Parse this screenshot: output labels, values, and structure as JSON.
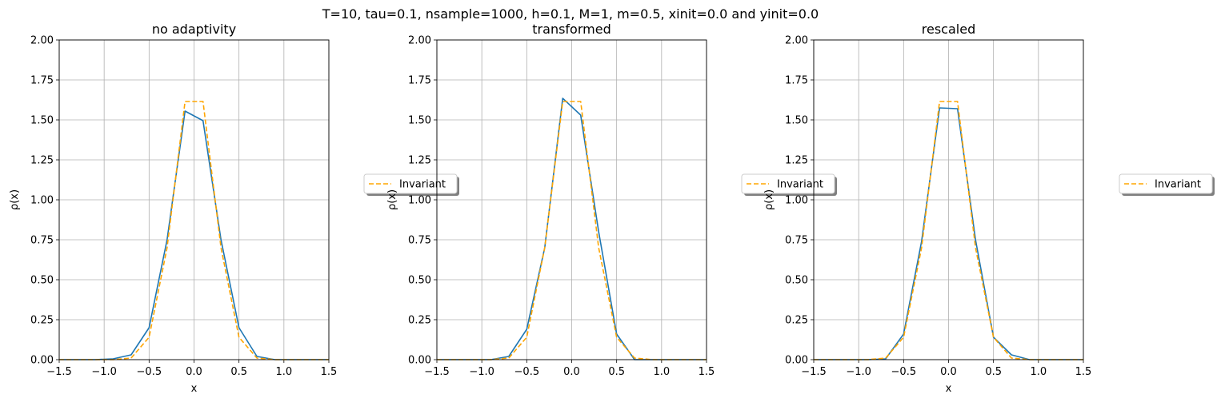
{
  "suptitle": "T=10, tau=0.1, nsample=1000, h=0.1, M=1, m=0.5, xinit=0.0 and yinit=0.0",
  "colors": {
    "series": "#1f77b4",
    "invariant": "#ffa500",
    "grid": "#b0b0b0"
  },
  "chart_data": [
    {
      "type": "line",
      "title": "no adaptivity",
      "xlabel": "x",
      "ylabel": "ρ(x)",
      "xlim": [
        -1.5,
        1.5
      ],
      "ylim": [
        0,
        2.0
      ],
      "xticks": [
        "−1.5",
        "−1.0",
        "−0.5",
        "0.0",
        "0.5",
        "1.0",
        "1.5"
      ],
      "yticks": [
        "0.00",
        "0.25",
        "0.50",
        "0.75",
        "1.00",
        "1.25",
        "1.50",
        "1.75",
        "2.00"
      ],
      "grid": true,
      "legend": {
        "entries": [
          "Invariant"
        ],
        "placement": "center-right outside"
      },
      "series": [
        {
          "x": [
            -1.5,
            -1.3,
            -1.1,
            -0.9,
            -0.7,
            -0.5,
            -0.3,
            -0.1,
            0.1,
            0.3,
            0.5,
            0.7,
            0.9,
            1.1,
            1.3,
            1.5
          ],
          "y": [
            0.0,
            0.0,
            0.0,
            0.005,
            0.03,
            0.2,
            0.75,
            1.555,
            1.495,
            0.75,
            0.2,
            0.02,
            0.0,
            0.0,
            0.0,
            0.0
          ]
        },
        {
          "name": "Invariant",
          "x": [
            -1.5,
            -1.3,
            -1.1,
            -0.9,
            -0.7,
            -0.5,
            -0.3,
            -0.1,
            0.1,
            0.3,
            0.5,
            0.7,
            0.9,
            1.1,
            1.3,
            1.5
          ],
          "y": [
            0.0,
            0.0,
            0.0,
            0.0,
            0.01,
            0.14,
            0.7,
            1.615,
            1.615,
            0.7,
            0.14,
            0.01,
            0.0,
            0.0,
            0.0,
            0.0
          ]
        }
      ]
    },
    {
      "type": "line",
      "title": "transformed",
      "xlabel": "",
      "ylabel": "ρ(x)",
      "xlim": [
        -1.5,
        1.5
      ],
      "ylim": [
        0,
        2.0
      ],
      "xticks": [
        "−1.5",
        "−1.0",
        "−0.5",
        "0.0",
        "0.5",
        "1.0",
        "1.5"
      ],
      "yticks": [
        "0.00",
        "0.25",
        "0.50",
        "0.75",
        "1.00",
        "1.25",
        "1.50",
        "1.75",
        "2.00"
      ],
      "grid": true,
      "legend": {
        "entries": [
          "Invariant"
        ],
        "placement": "center-right outside"
      },
      "series": [
        {
          "x": [
            -1.5,
            -1.3,
            -1.1,
            -0.9,
            -0.7,
            -0.5,
            -0.3,
            -0.1,
            0.1,
            0.3,
            0.5,
            0.7,
            0.9,
            1.1,
            1.3,
            1.5
          ],
          "y": [
            0.0,
            0.0,
            0.0,
            0.0,
            0.02,
            0.19,
            0.7,
            1.635,
            1.53,
            0.8,
            0.16,
            0.0,
            0.0,
            0.0,
            0.0,
            0.0
          ]
        },
        {
          "name": "Invariant",
          "x": [
            -1.5,
            -1.3,
            -1.1,
            -0.9,
            -0.7,
            -0.5,
            -0.3,
            -0.1,
            0.1,
            0.3,
            0.5,
            0.7,
            0.9,
            1.1,
            1.3,
            1.5
          ],
          "y": [
            0.0,
            0.0,
            0.0,
            0.0,
            0.01,
            0.14,
            0.7,
            1.615,
            1.615,
            0.7,
            0.14,
            0.01,
            0.0,
            0.0,
            0.0,
            0.0
          ]
        }
      ]
    },
    {
      "type": "line",
      "title": "rescaled",
      "xlabel": "x",
      "ylabel": "ρ(x)",
      "xlim": [
        -1.5,
        1.5
      ],
      "ylim": [
        0,
        2.0
      ],
      "xticks": [
        "−1.5",
        "−1.0",
        "−0.5",
        "0.0",
        "0.5",
        "1.0",
        "1.5"
      ],
      "yticks": [
        "0.00",
        "0.25",
        "0.50",
        "0.75",
        "1.00",
        "1.25",
        "1.50",
        "1.75",
        "2.00"
      ],
      "grid": true,
      "legend": {
        "entries": [
          "Invariant"
        ],
        "placement": "center-right outside"
      },
      "series": [
        {
          "x": [
            -1.5,
            -1.3,
            -1.1,
            -0.9,
            -0.7,
            -0.5,
            -0.3,
            -0.1,
            0.1,
            0.3,
            0.5,
            0.7,
            0.9,
            1.1,
            1.3,
            1.5
          ],
          "y": [
            0.0,
            0.0,
            0.0,
            0.0,
            0.005,
            0.16,
            0.74,
            1.575,
            1.57,
            0.75,
            0.14,
            0.03,
            0.0,
            0.0,
            0.0,
            0.0
          ]
        },
        {
          "name": "Invariant",
          "x": [
            -1.5,
            -1.3,
            -1.1,
            -0.9,
            -0.7,
            -0.5,
            -0.3,
            -0.1,
            0.1,
            0.3,
            0.5,
            0.7,
            0.9,
            1.1,
            1.3,
            1.5
          ],
          "y": [
            0.0,
            0.0,
            0.0,
            0.0,
            0.01,
            0.14,
            0.7,
            1.615,
            1.615,
            0.7,
            0.14,
            0.01,
            0.0,
            0.0,
            0.0,
            0.0
          ]
        }
      ]
    }
  ]
}
